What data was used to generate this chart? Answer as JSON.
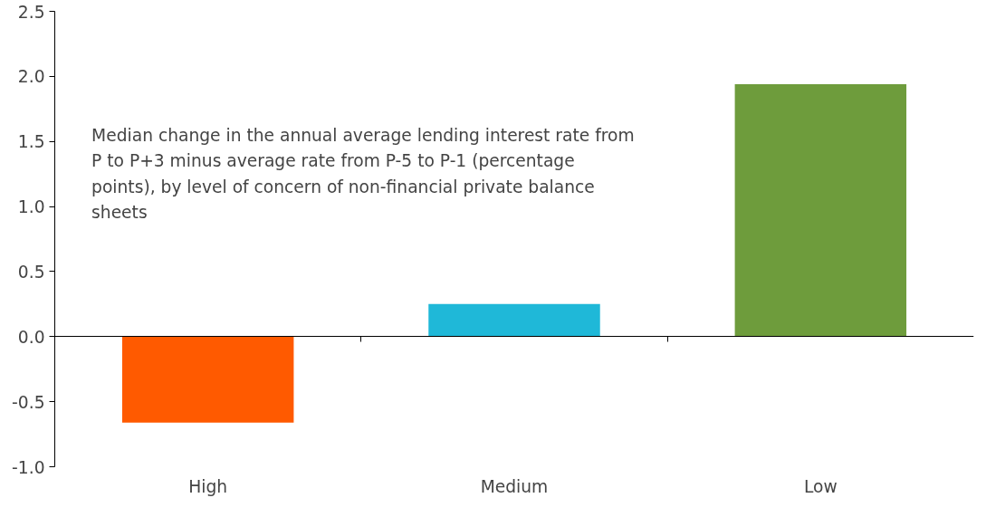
{
  "chart_data": {
    "type": "bar",
    "categories": [
      "High",
      "Medium",
      "Low"
    ],
    "values": [
      -0.66,
      0.25,
      1.94
    ],
    "colors": [
      "#ff5a00",
      "#1fb8d8",
      "#6e9c3c"
    ],
    "ylim": [
      -1.0,
      2.5
    ],
    "yticks": [
      {
        "value": -1.0,
        "label": "-1.0"
      },
      {
        "value": -0.5,
        "label": "-0.5"
      },
      {
        "value": 0,
        "label": "0.0"
      },
      {
        "value": 0.5,
        "label": "0.5"
      },
      {
        "value": 1.0,
        "label": "1.0"
      },
      {
        "value": 1.5,
        "label": "1.5"
      },
      {
        "value": 2.0,
        "label": "2.0"
      },
      {
        "value": 2.5,
        "label": "2.5"
      }
    ],
    "annotations": [
      "Median change in the annual average lending interest rate from P to P+3 minus average rate from P-5 to P-1 (percentage points), by level of concern of non-financial private balance sheets"
    ]
  }
}
